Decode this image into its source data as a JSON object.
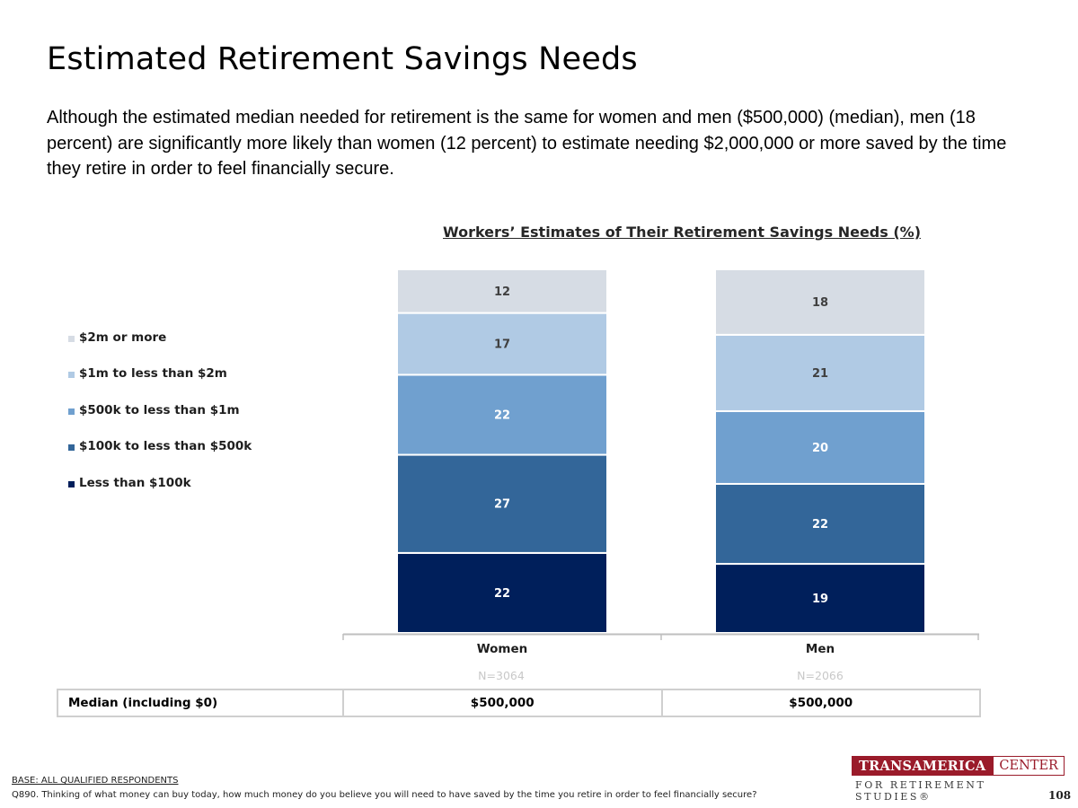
{
  "page": {
    "title": "Estimated Retirement Savings Needs",
    "subtitle": "Although the estimated median needed for retirement is the same for women and men ($500,000) (median), men (18 percent) are significantly more likely than women (12 percent) to estimate needing $2,000,000 or more saved by the time they retire in order to feel financially secure.",
    "page_number": "108"
  },
  "chart_data": {
    "type": "bar",
    "stacked": true,
    "title": "Workers’ Estimates of Their Retirement Savings Needs (%)",
    "categories": [
      "Women",
      "Men"
    ],
    "sample_sizes": [
      "N=3064",
      "N=2066"
    ],
    "series": [
      {
        "name": "Less than $100k",
        "values": [
          22,
          19
        ],
        "color": "#001f5b",
        "label_color": "#ffffff"
      },
      {
        "name": "$100k to less than $500k",
        "values": [
          27,
          22
        ],
        "color": "#336699",
        "label_color": "#ffffff"
      },
      {
        "name": "$500k to less than $1m",
        "values": [
          22,
          20
        ],
        "color": "#70a0cf",
        "label_color": "#ffffff"
      },
      {
        "name": "$1m to less than $2m",
        "values": [
          17,
          21
        ],
        "color": "#b0cae4",
        "label_color": "#404040"
      },
      {
        "name": "$2m or more",
        "values": [
          12,
          18
        ],
        "color": "#d6dce4",
        "label_color": "#404040"
      }
    ],
    "ylim": [
      0,
      100
    ],
    "legend_position": "left",
    "grid": false
  },
  "median_table": {
    "label": "Median (including $0)",
    "values": [
      "$500,000",
      "$500,000"
    ]
  },
  "footnotes": {
    "base": "BASE: ALL QUALIFIED RESPONDENTS",
    "question": "Q890. Thinking of what money can buy today, how much money do you believe you will need to have saved by the time you retire in order to feel financially secure?"
  },
  "logo": {
    "line1_left": "TRANSAMERICA",
    "line1_right": "CENTER",
    "line2": "FOR RETIREMENT STUDIES®",
    "brand_color": "#9a1b2a"
  }
}
